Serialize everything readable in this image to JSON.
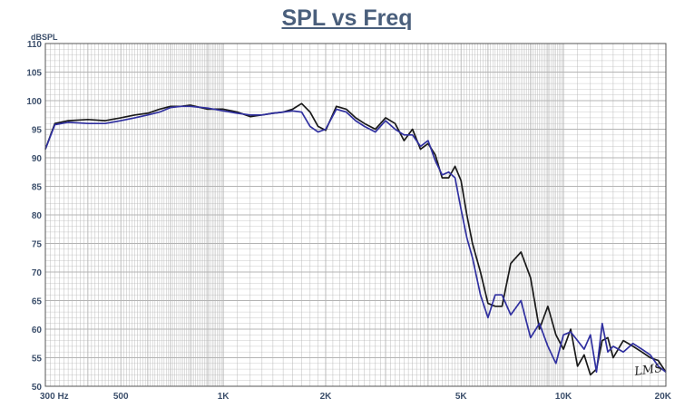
{
  "chart_data": {
    "type": "line",
    "title": "SPL vs Freq",
    "ylabel": "dBSPL",
    "xlabel": "",
    "x_scale": "log",
    "xlim": [
      300,
      20000
    ],
    "ylim": [
      50,
      110
    ],
    "grid": true,
    "x_tick_labels": [
      {
        "value": 300,
        "label": "300  Hz"
      },
      {
        "value": 500,
        "label": "500"
      },
      {
        "value": 1000,
        "label": "1K"
      },
      {
        "value": 2000,
        "label": "2K"
      },
      {
        "value": 5000,
        "label": "5K"
      },
      {
        "value": 10000,
        "label": "10K"
      },
      {
        "value": 20000,
        "label": "20K"
      }
    ],
    "y_ticks": [
      50,
      55,
      60,
      65,
      70,
      75,
      80,
      85,
      90,
      95,
      100,
      105,
      110
    ],
    "watermark": "LMS",
    "colors": {
      "series_black": "#1a1a1a",
      "series_blue": "#3030a0",
      "grid": "#b4b4b4",
      "axis_text": "#3c4f6b",
      "title": "#4a5f7c"
    },
    "series": [
      {
        "color": "black",
        "x": [
          300,
          320,
          350,
          400,
          450,
          500,
          550,
          600,
          650,
          700,
          750,
          800,
          900,
          1000,
          1100,
          1200,
          1300,
          1400,
          1500,
          1600,
          1700,
          1800,
          1900,
          2000,
          2150,
          2300,
          2450,
          2600,
          2800,
          3000,
          3200,
          3400,
          3600,
          3800,
          4000,
          4200,
          4400,
          4600,
          4800,
          5000,
          5200,
          5400,
          5700,
          6000,
          6300,
          6600,
          7000,
          7500,
          8000,
          8500,
          9000,
          9500,
          10000,
          10500,
          11000,
          11500,
          12000,
          12500,
          13000,
          13500,
          14000,
          15000,
          16000,
          17000,
          18000,
          19000,
          20000
        ],
        "y": [
          91.5,
          96,
          96.5,
          96.7,
          96.5,
          97,
          97.5,
          97.8,
          98.5,
          99,
          99,
          99.2,
          98.5,
          98.5,
          98,
          97.2,
          97.5,
          97.8,
          98,
          98.5,
          99.5,
          98,
          95.5,
          94.8,
          99,
          98.5,
          97,
          96,
          95,
          97,
          96,
          93,
          95,
          91.5,
          92.5,
          90.5,
          86.5,
          86.5,
          88.5,
          86,
          80,
          75,
          70,
          64.5,
          64,
          64,
          71.5,
          73.5,
          69,
          60,
          64,
          59,
          56.5,
          60,
          53.5,
          55.5,
          52,
          53,
          58,
          58.5,
          55,
          58,
          57,
          56,
          55,
          54.5,
          52.5
        ]
      },
      {
        "color": "blue",
        "x": [
          300,
          320,
          350,
          400,
          450,
          500,
          550,
          600,
          650,
          700,
          750,
          800,
          900,
          1000,
          1100,
          1200,
          1300,
          1400,
          1500,
          1600,
          1700,
          1800,
          1900,
          2000,
          2150,
          2300,
          2450,
          2600,
          2800,
          3000,
          3200,
          3400,
          3600,
          3800,
          4000,
          4200,
          4400,
          4600,
          4800,
          5000,
          5200,
          5400,
          5700,
          6000,
          6300,
          6600,
          7000,
          7500,
          8000,
          8500,
          9000,
          9500,
          10000,
          10500,
          11000,
          11500,
          12000,
          12500,
          13000,
          13500,
          14000,
          15000,
          16000,
          17000,
          18000,
          19000,
          20000
        ],
        "y": [
          91.5,
          95.8,
          96.2,
          96,
          96,
          96.5,
          97,
          97.5,
          98,
          98.8,
          99,
          99,
          98.7,
          98.2,
          97.8,
          97.5,
          97.5,
          97.8,
          98,
          98.2,
          98,
          95.5,
          94.5,
          95,
          98.5,
          98,
          96.5,
          95.5,
          94.5,
          96.5,
          95,
          94,
          94,
          92,
          93,
          89.5,
          87,
          87.5,
          86.5,
          81,
          76,
          72.5,
          66,
          62,
          66,
          66,
          62.5,
          65,
          58.5,
          61,
          57,
          54,
          59,
          59.5,
          58,
          56.5,
          59,
          52.5,
          61,
          56,
          57,
          56,
          57.5,
          56.5,
          55.5,
          53.5,
          52.5
        ]
      }
    ]
  }
}
